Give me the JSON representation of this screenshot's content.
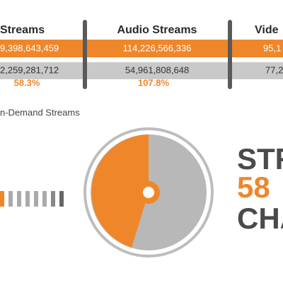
{
  "header": {
    "columns": [
      "Streams",
      "Audio Streams",
      "Vide"
    ]
  },
  "rows": [
    [
      "9,398,643,459",
      "114,226,566,336",
      "95,1"
    ],
    [
      "2,259,281,712",
      "54,961,808,648",
      "77,2"
    ]
  ],
  "changes": [
    "58.3%",
    "107.8%"
  ],
  "section_label": "n-Demand Streams",
  "headline": [
    "STR",
    "58",
    "CHA"
  ]
}
